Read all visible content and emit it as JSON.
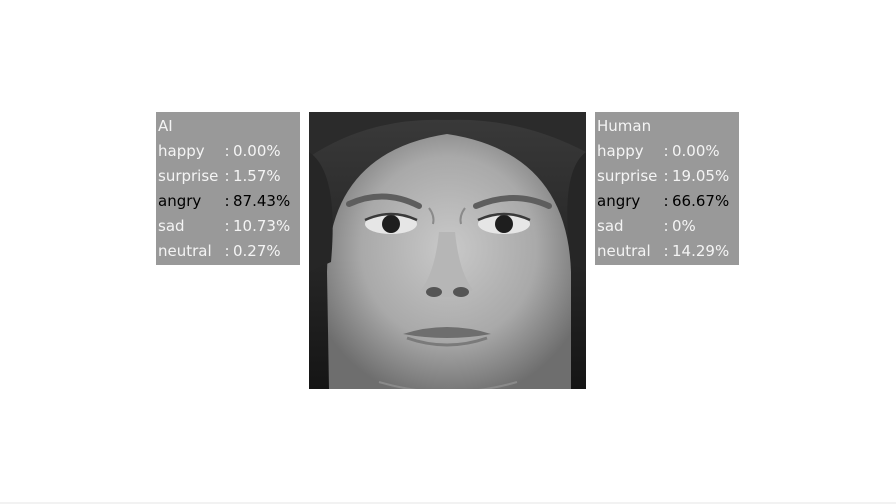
{
  "ai_panel": {
    "title": "AI",
    "rows": [
      {
        "label": "happy",
        "sep": ":",
        "value": "0.00%"
      },
      {
        "label": "surprise",
        "sep": ":",
        "value": "1.57%"
      },
      {
        "label": "angry",
        "sep": ":",
        "value": "87.43%"
      },
      {
        "label": "sad",
        "sep": ":",
        "value": "10.73%"
      },
      {
        "label": "neutral",
        "sep": ":",
        "value": "0.27%"
      }
    ]
  },
  "human_panel": {
    "title": "Human",
    "rows": [
      {
        "label": "happy",
        "sep": ":",
        "value": "0.00%"
      },
      {
        "label": "surprise",
        "sep": ":",
        "value": "19.05%"
      },
      {
        "label": "angry",
        "sep": ":",
        "value": "66.67%"
      },
      {
        "label": "sad",
        "sep": ":",
        "value": "0%"
      },
      {
        "label": "neutral",
        "sep": ":",
        "value": "14.29%"
      }
    ]
  },
  "colors": {
    "panel_bg": "#999999",
    "panel_text": "#f4f4f4",
    "dominant_text": "#000000"
  },
  "face_image": {
    "icon": "grayscale-face-photo"
  }
}
